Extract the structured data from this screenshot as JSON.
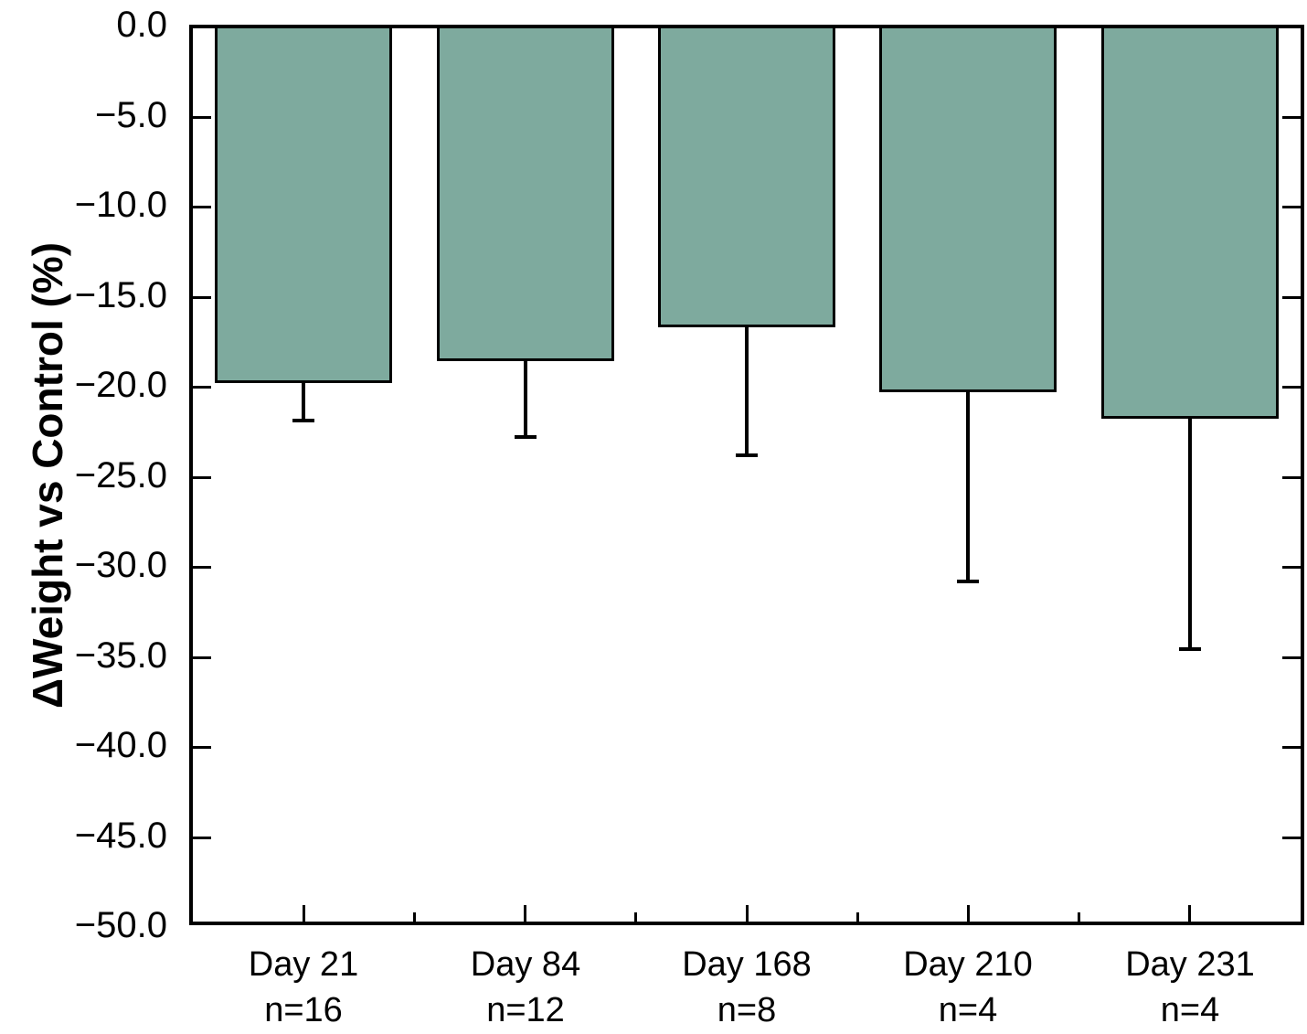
{
  "chart_data": {
    "type": "bar",
    "title": "",
    "xlabel": "",
    "ylabel": "ΔWeight vs Control (%)",
    "ylim": [
      -50.0,
      0.0
    ],
    "y_tick_step": 5.0,
    "y_tick_labels": [
      "0.0",
      "−5.0",
      "−10.0",
      "−15.0",
      "−20.0",
      "−25.0",
      "−30.0",
      "−35.0",
      "−40.0",
      "−45.0",
      "−50.0"
    ],
    "categories": [
      "Day 21",
      "Day 84",
      "Day 168",
      "Day 210",
      "Day 231"
    ],
    "sample_sizes": [
      "n=16",
      "n=12",
      "n=8",
      "n=4",
      "n=4"
    ],
    "series": [
      {
        "name": "ΔWeight vs Control",
        "values": [
          -19.7,
          -18.5,
          -16.6,
          -20.2,
          -21.7
        ],
        "error_down": [
          2.2,
          4.3,
          7.2,
          10.6,
          12.9
        ]
      }
    ],
    "bar_color": "#7EAA9E",
    "bar_border_color": "#000000",
    "error_color": "#000000",
    "axis_color": "#000000",
    "background_color": "#FFFFFF",
    "grid": false,
    "legend_position": "none"
  }
}
